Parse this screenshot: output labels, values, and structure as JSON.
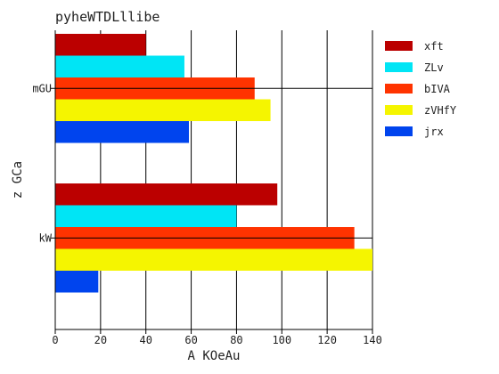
{
  "chart_data": {
    "type": "bar",
    "orientation": "horizontal",
    "title": "pyheWTDLllibe",
    "xlabel": "A KOeAu",
    "ylabel": "z GCa",
    "categories": [
      "mGU",
      "kW"
    ],
    "xlim": [
      0,
      140
    ],
    "xticks": [
      "0",
      "20",
      "40",
      "60",
      "80",
      "100",
      "120",
      "140"
    ],
    "grid": "vertical",
    "legend_position": "top-right",
    "series": [
      {
        "name": "xft",
        "color": "#bb0000",
        "values": [
          40,
          98
        ]
      },
      {
        "name": "ZLv",
        "color": "#00e5f5",
        "values": [
          57,
          80
        ]
      },
      {
        "name": "bIVA",
        "color": "#ff3300",
        "values": [
          88,
          132
        ]
      },
      {
        "name": "zVHfY",
        "color": "#f5f500",
        "values": [
          95,
          140
        ]
      },
      {
        "name": "jrx",
        "color": "#0044ee",
        "values": [
          59,
          19
        ]
      }
    ]
  }
}
